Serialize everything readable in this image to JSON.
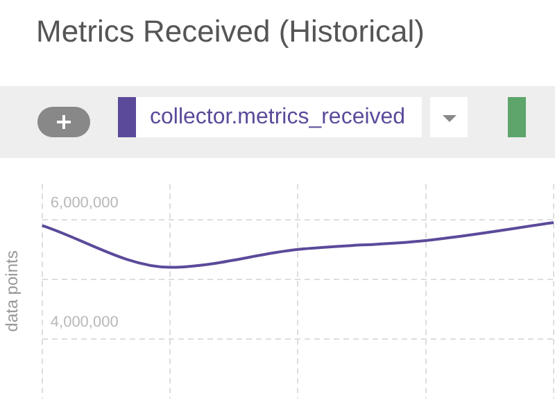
{
  "chart_data": {
    "type": "line",
    "title": "Metrics Received (Historical)",
    "ylabel": "data points",
    "categories": [
      null,
      null,
      null,
      null,
      null
    ],
    "series": [
      {
        "name": "collector.metrics_received",
        "color": "#5b4a9a",
        "values": [
          5900000,
          5200000,
          5500000,
          5650000,
          5950000
        ]
      }
    ],
    "ylim": [
      3000000,
      6600000
    ],
    "yticks": [
      {
        "value": 4000000,
        "label": "4,000,000"
      },
      {
        "value": 5000000,
        "label": null
      },
      {
        "value": 6000000,
        "label": "6,000,000"
      }
    ],
    "grid": true,
    "legend": "top left",
    "tick_labels": "y",
    "marker": "none",
    "line_style": "solid"
  }
}
